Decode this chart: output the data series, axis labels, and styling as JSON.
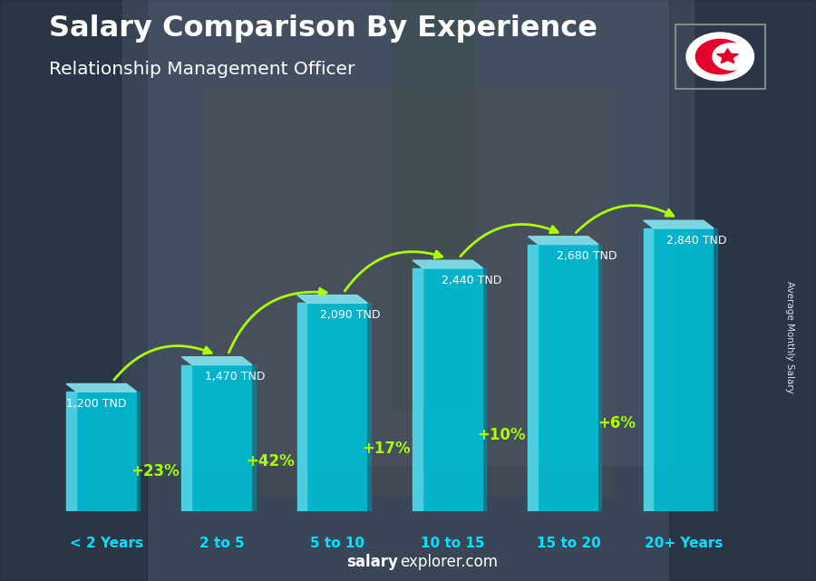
{
  "title_line1": "Salary Comparison By Experience",
  "title_line2": "Relationship Management Officer",
  "categories": [
    "< 2 Years",
    "2 to 5",
    "5 to 10",
    "10 to 15",
    "15 to 20",
    "20+ Years"
  ],
  "values": [
    1200,
    1470,
    2090,
    2440,
    2680,
    2840
  ],
  "value_labels": [
    "1,200 TND",
    "1,470 TND",
    "2,090 TND",
    "2,440 TND",
    "2,680 TND",
    "2,840 TND"
  ],
  "pct_labels": [
    "+23%",
    "+42%",
    "+17%",
    "+10%",
    "+6%"
  ],
  "bar_face_color": "#00bcd4",
  "bar_left_color": "#4dd9ec",
  "bar_right_color": "#0097a7",
  "bar_top_color": "#80deea",
  "ylabel": "Average Monthly Salary",
  "pct_color": "#aaff00",
  "cat_color": "#00e5ff",
  "value_color": "#ffffff",
  "title_color": "#ffffff",
  "subtitle_color": "#ffffff",
  "footer_bold": "salary",
  "footer_normal": "explorer.com",
  "ylim_max": 3500,
  "bar_width": 0.52,
  "bg_color": "#3a4a5a"
}
